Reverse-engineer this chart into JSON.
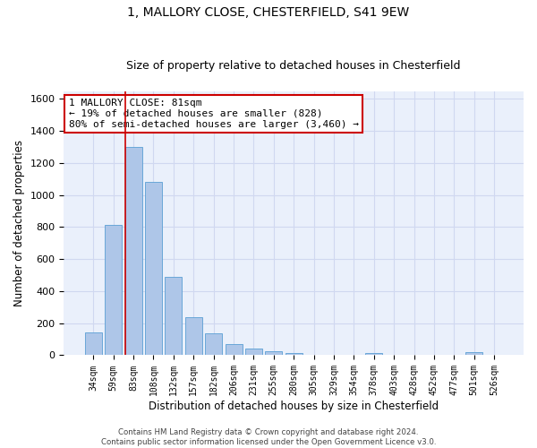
{
  "title": "1, MALLORY CLOSE, CHESTERFIELD, S41 9EW",
  "subtitle": "Size of property relative to detached houses in Chesterfield",
  "xlabel": "Distribution of detached houses by size in Chesterfield",
  "ylabel": "Number of detached properties",
  "categories": [
    "34sqm",
    "59sqm",
    "83sqm",
    "108sqm",
    "132sqm",
    "157sqm",
    "182sqm",
    "206sqm",
    "231sqm",
    "255sqm",
    "280sqm",
    "305sqm",
    "329sqm",
    "354sqm",
    "378sqm",
    "403sqm",
    "428sqm",
    "452sqm",
    "477sqm",
    "501sqm",
    "526sqm"
  ],
  "values": [
    140,
    815,
    1300,
    1085,
    490,
    235,
    135,
    70,
    43,
    27,
    14,
    0,
    0,
    0,
    12,
    0,
    0,
    0,
    0,
    20,
    0
  ],
  "bar_color": "#aec6e8",
  "bar_edge_color": "#5a9fd4",
  "vline_x_index": 2,
  "vline_color": "#cc0000",
  "annotation_text": "1 MALLORY CLOSE: 81sqm\n← 19% of detached houses are smaller (828)\n80% of semi-detached houses are larger (3,460) →",
  "annotation_box_color": "#ffffff",
  "annotation_box_edge": "#cc0000",
  "ylim": [
    0,
    1650
  ],
  "yticks": [
    0,
    200,
    400,
    600,
    800,
    1000,
    1200,
    1400,
    1600
  ],
  "grid_color": "#d0d8f0",
  "bg_color": "#eaf0fb",
  "footer_line1": "Contains HM Land Registry data © Crown copyright and database right 2024.",
  "footer_line2": "Contains public sector information licensed under the Open Government Licence v3.0."
}
